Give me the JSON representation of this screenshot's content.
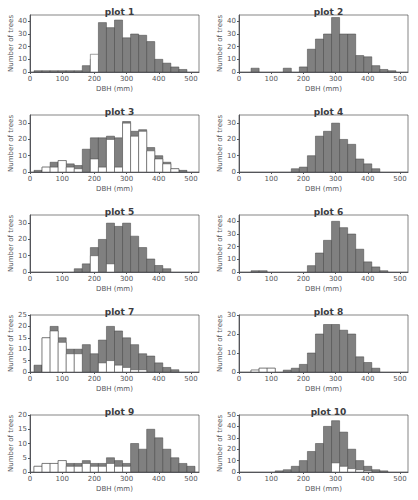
{
  "chart_data": [
    {
      "type": "bar",
      "title": "plot 1",
      "xlabel": "DBH (mm)",
      "ylabel": "Number of trees",
      "x": [
        25,
        50,
        75,
        100,
        125,
        150,
        175,
        200,
        225,
        250,
        275,
        300,
        325,
        350,
        375,
        400,
        425,
        450,
        475,
        500
      ],
      "series": [
        {
          "color": "#808080",
          "values": [
            1,
            1,
            1,
            1,
            1,
            1,
            5,
            10,
            39,
            35,
            41,
            27,
            30,
            29,
            24,
            10,
            7,
            4,
            2,
            0
          ]
        },
        {
          "color": "#ffffff",
          "values": [
            0,
            0,
            0,
            0,
            0,
            0,
            0,
            14,
            0,
            0,
            0,
            0,
            0,
            0,
            0,
            0,
            0,
            0,
            0,
            0
          ]
        }
      ],
      "xlim": [
        0,
        525
      ],
      "xticks": [
        0,
        100,
        200,
        300,
        400,
        500
      ],
      "ylim": [
        0,
        45
      ],
      "yticks": [
        0,
        10,
        20,
        30,
        40
      ]
    },
    {
      "type": "bar",
      "title": "plot 2",
      "xlabel": "DBH (mm)",
      "ylabel": "Number of trees",
      "x": [
        25,
        50,
        75,
        100,
        125,
        150,
        175,
        200,
        225,
        250,
        275,
        300,
        325,
        350,
        375,
        400,
        425,
        450,
        475,
        500
      ],
      "series": [
        {
          "color": "#808080",
          "values": [
            0,
            3,
            0,
            0,
            0,
            3,
            0,
            4,
            18,
            26,
            30,
            43,
            30,
            30,
            13,
            12,
            5,
            2,
            1,
            0
          ]
        },
        {
          "color": "#ffffff",
          "values": [
            0,
            0,
            0,
            0,
            0,
            0,
            0,
            0,
            0,
            0,
            0,
            0,
            0,
            0,
            0,
            0,
            0,
            0,
            0,
            0
          ]
        }
      ],
      "xlim": [
        0,
        525
      ],
      "xticks": [
        0,
        100,
        200,
        300,
        400,
        500
      ],
      "ylim": [
        0,
        45
      ],
      "yticks": [
        0,
        10,
        20,
        30,
        40
      ]
    },
    {
      "type": "bar",
      "title": "plot 3",
      "xlabel": "DBH (mm)",
      "ylabel": "Number of trees",
      "x": [
        25,
        50,
        75,
        100,
        125,
        150,
        175,
        200,
        225,
        250,
        275,
        300,
        325,
        350,
        375,
        400,
        425,
        450,
        475,
        500,
        525
      ],
      "series": [
        {
          "color": "#808080",
          "values": [
            1,
            3,
            6,
            7,
            5,
            4,
            14,
            21,
            21,
            22,
            21,
            31,
            25,
            26,
            15,
            10,
            6,
            2,
            1,
            0,
            0
          ]
        },
        {
          "color": "#ffffff",
          "values": [
            0,
            3,
            3,
            7,
            3,
            2,
            0,
            8,
            3,
            20,
            3,
            30,
            22,
            25,
            13,
            8,
            5,
            2,
            0,
            0,
            0
          ]
        }
      ],
      "xlim": [
        0,
        525
      ],
      "xticks": [
        0,
        100,
        200,
        300,
        400,
        500
      ],
      "ylim": [
        0,
        35
      ],
      "yticks": [
        0,
        10,
        20,
        30
      ]
    },
    {
      "type": "bar",
      "title": "plot 4",
      "xlabel": "DBH (mm)",
      "ylabel": "Number of trees",
      "x": [
        25,
        50,
        75,
        100,
        125,
        150,
        175,
        200,
        225,
        250,
        275,
        300,
        325,
        350,
        375,
        400,
        425,
        450,
        475,
        500
      ],
      "series": [
        {
          "color": "#808080",
          "values": [
            0,
            0,
            0,
            0,
            0,
            0,
            2,
            3,
            10,
            22,
            25,
            30,
            20,
            17,
            8,
            5,
            2,
            0,
            0,
            0
          ]
        },
        {
          "color": "#ffffff",
          "values": [
            0,
            0,
            0,
            0,
            0,
            0,
            0,
            0,
            0,
            0,
            0,
            0,
            0,
            0,
            0,
            0,
            0,
            0,
            0,
            0
          ]
        }
      ],
      "xlim": [
        0,
        525
      ],
      "xticks": [
        0,
        100,
        200,
        300,
        400,
        500
      ],
      "ylim": [
        0,
        35
      ],
      "yticks": [
        0,
        10,
        20,
        30
      ]
    },
    {
      "type": "bar",
      "title": "plot 5",
      "xlabel": "DBH (mm)",
      "ylabel": "Number of trees",
      "x": [
        25,
        50,
        75,
        100,
        125,
        150,
        175,
        200,
        225,
        250,
        275,
        300,
        325,
        350,
        375,
        400,
        425,
        450,
        475,
        500
      ],
      "series": [
        {
          "color": "#808080",
          "values": [
            0,
            0,
            0,
            0,
            0,
            2,
            5,
            15,
            20,
            30,
            28,
            30,
            22,
            15,
            8,
            4,
            2,
            0,
            0,
            0
          ]
        },
        {
          "color": "#ffffff",
          "values": [
            0,
            0,
            0,
            0,
            0,
            0,
            0,
            10,
            0,
            5,
            0,
            0,
            0,
            0,
            0,
            0,
            0,
            0,
            0,
            0
          ]
        }
      ],
      "xlim": [
        0,
        525
      ],
      "xticks": [
        0,
        100,
        200,
        300,
        400,
        500
      ],
      "ylim": [
        0,
        35
      ],
      "yticks": [
        0,
        10,
        20,
        30
      ]
    },
    {
      "type": "bar",
      "title": "plot 6",
      "xlabel": "DBH (mm)",
      "ylabel": "Number of trees",
      "x": [
        25,
        50,
        75,
        100,
        125,
        150,
        175,
        200,
        225,
        250,
        275,
        300,
        325,
        350,
        375,
        400,
        425,
        450,
        475,
        500
      ],
      "series": [
        {
          "color": "#808080",
          "values": [
            0,
            1,
            1,
            0,
            0,
            0,
            0,
            0,
            5,
            15,
            25,
            40,
            35,
            30,
            18,
            8,
            4,
            1,
            0,
            0
          ]
        },
        {
          "color": "#ffffff",
          "values": [
            0,
            0,
            0,
            0,
            0,
            0,
            0,
            0,
            0,
            0,
            0,
            0,
            0,
            0,
            0,
            0,
            0,
            0,
            0,
            0
          ]
        }
      ],
      "xlim": [
        0,
        525
      ],
      "xticks": [
        0,
        100,
        200,
        300,
        400,
        500
      ],
      "ylim": [
        0,
        45
      ],
      "yticks": [
        0,
        10,
        20,
        30,
        40
      ]
    },
    {
      "type": "bar",
      "title": "plot 7",
      "xlabel": "DBH (mm)",
      "ylabel": "Number of trees",
      "x": [
        25,
        50,
        75,
        100,
        125,
        150,
        175,
        200,
        225,
        250,
        275,
        300,
        325,
        350,
        375,
        400,
        425,
        450,
        475,
        500
      ],
      "series": [
        {
          "color": "#808080",
          "values": [
            3,
            15,
            20,
            15,
            10,
            10,
            12,
            8,
            14,
            20,
            18,
            15,
            12,
            8,
            7,
            4,
            2,
            1,
            0,
            0
          ]
        },
        {
          "color": "#ffffff",
          "values": [
            0,
            15,
            18,
            13,
            8,
            8,
            0,
            0,
            4,
            5,
            3,
            2,
            1,
            1,
            0,
            0,
            0,
            0,
            0,
            0
          ]
        }
      ],
      "xlim": [
        0,
        525
      ],
      "xticks": [
        0,
        100,
        200,
        300,
        400,
        500
      ],
      "ylim": [
        0,
        25
      ],
      "yticks": [
        0,
        5,
        10,
        15,
        20,
        25
      ]
    },
    {
      "type": "bar",
      "title": "plot 8",
      "xlabel": "DBH (mm)",
      "ylabel": "Number of trees",
      "x": [
        25,
        50,
        75,
        100,
        125,
        150,
        175,
        200,
        225,
        250,
        275,
        300,
        325,
        350,
        375,
        400,
        425,
        450,
        475,
        500
      ],
      "series": [
        {
          "color": "#808080",
          "values": [
            0,
            1,
            2,
            2,
            0,
            1,
            2,
            4,
            10,
            20,
            25,
            25,
            22,
            20,
            8,
            5,
            2,
            0,
            0,
            0
          ]
        },
        {
          "color": "#ffffff",
          "values": [
            0,
            1,
            2,
            2,
            0,
            0,
            0,
            0,
            0,
            0,
            0,
            0,
            0,
            0,
            0,
            0,
            0,
            0,
            0,
            0
          ]
        }
      ],
      "xlim": [
        0,
        525
      ],
      "xticks": [
        0,
        100,
        200,
        300,
        400,
        500
      ],
      "ylim": [
        0,
        30
      ],
      "yticks": [
        0,
        10,
        20,
        30
      ]
    },
    {
      "type": "bar",
      "title": "plot 9",
      "xlabel": "DBH (mm)",
      "ylabel": "Number of trees",
      "x": [
        25,
        50,
        75,
        100,
        125,
        150,
        175,
        200,
        225,
        250,
        275,
        300,
        325,
        350,
        375,
        400,
        425,
        450,
        475,
        500
      ],
      "series": [
        {
          "color": "#808080",
          "values": [
            2,
            3,
            3,
            4,
            3,
            3,
            4,
            3,
            3,
            5,
            4,
            3,
            10,
            8,
            15,
            12,
            8,
            5,
            3,
            2
          ]
        },
        {
          "color": "#ffffff",
          "values": [
            2,
            3,
            3,
            4,
            2,
            2,
            3,
            2,
            2,
            3,
            2,
            2,
            0,
            0,
            0,
            0,
            0,
            0,
            0,
            0
          ]
        }
      ],
      "xlim": [
        0,
        525
      ],
      "xticks": [
        0,
        100,
        200,
        300,
        400,
        500
      ],
      "ylim": [
        0,
        20
      ],
      "yticks": [
        0,
        5,
        10,
        15,
        20
      ]
    },
    {
      "type": "bar",
      "title": "plot 10",
      "xlabel": "DBH (mm)",
      "ylabel": "Number of trees",
      "x": [
        25,
        50,
        75,
        100,
        125,
        150,
        175,
        200,
        225,
        250,
        275,
        300,
        325,
        350,
        375,
        400,
        425,
        450,
        475,
        500
      ],
      "series": [
        {
          "color": "#808080",
          "values": [
            0,
            0,
            0,
            0,
            1,
            2,
            5,
            10,
            18,
            25,
            40,
            45,
            35,
            20,
            10,
            5,
            2,
            1,
            0,
            0
          ]
        },
        {
          "color": "#ffffff",
          "values": [
            0,
            0,
            0,
            0,
            0,
            0,
            0,
            0,
            0,
            0,
            0,
            8,
            5,
            3,
            2,
            1,
            0,
            0,
            0,
            0
          ]
        }
      ],
      "xlim": [
        0,
        525
      ],
      "xticks": [
        0,
        100,
        200,
        300,
        400,
        500
      ],
      "ylim": [
        0,
        50
      ],
      "yticks": [
        0,
        10,
        20,
        30,
        40,
        50
      ]
    }
  ]
}
